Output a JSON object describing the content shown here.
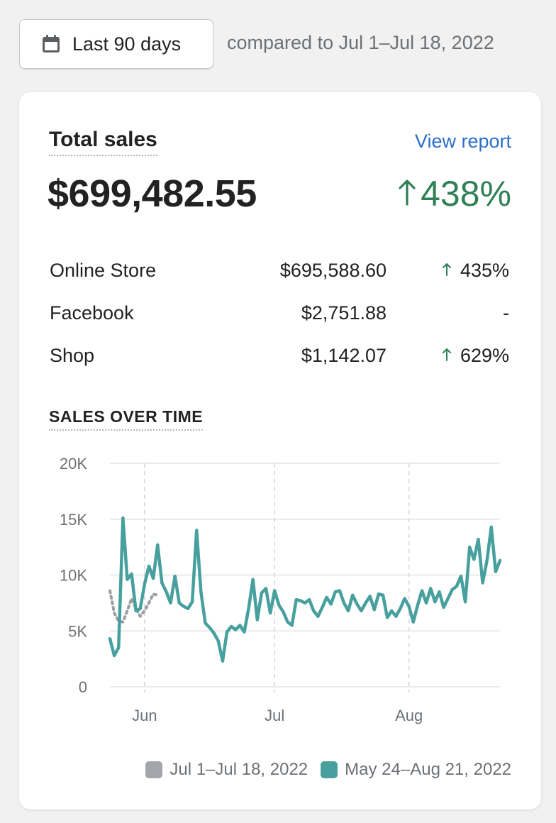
{
  "date_picker": {
    "label": "Last 90 days",
    "icon": "calendar-icon"
  },
  "comparison_text": "compared to Jul 1–Jul 18, 2022",
  "card": {
    "title": "Total sales",
    "view_report": "View report",
    "total_value": "$699,482.55",
    "total_change": "438%",
    "positive_color": "#2f8055",
    "link_color": "#2c6ecb"
  },
  "channels": [
    {
      "name": "Online Store",
      "amount": "$695,588.60",
      "change": "435%",
      "trend": "up"
    },
    {
      "name": "Facebook",
      "amount": "$2,751.88",
      "change": "-",
      "trend": "none"
    },
    {
      "name": "Shop",
      "amount": "$1,142.07",
      "change": "629%",
      "trend": "up"
    }
  ],
  "chart_title": "SALES OVER TIME",
  "chart_data": {
    "type": "line",
    "ylim": [
      0,
      20000
    ],
    "y_ticks": [
      0,
      5000,
      10000,
      15000,
      20000
    ],
    "y_tick_labels": [
      "0",
      "5K",
      "10K",
      "15K",
      "20K"
    ],
    "x_ticks": [
      {
        "label": "Jun",
        "day": 8
      },
      {
        "label": "Jul",
        "day": 38
      },
      {
        "label": "Aug",
        "day": 69
      }
    ],
    "grid": true,
    "legend_position": "bottom-right",
    "series": [
      {
        "name": "Jul 1–Jul 18, 2022",
        "color": "#8c9196",
        "style": "dotted",
        "values": [
          8600,
          6600,
          5900,
          5800,
          6800,
          7900,
          7000,
          6300,
          6800,
          7500,
          8300,
          8200
        ]
      },
      {
        "name": "May 24–Aug 21, 2022",
        "color": "#47a09e",
        "style": "solid",
        "values": [
          4300,
          2800,
          3500,
          15100,
          9600,
          10100,
          6800,
          7000,
          9200,
          10800,
          9700,
          12700,
          9300,
          8500,
          7500,
          9900,
          7500,
          7200,
          7000,
          7600,
          14000,
          8500,
          5700,
          5300,
          4800,
          4100,
          2300,
          4900,
          5400,
          5100,
          5500,
          4900,
          7000,
          9600,
          6000,
          8400,
          8800,
          6600,
          8600,
          7300,
          6700,
          5800,
          5500,
          7800,
          7700,
          7500,
          7800,
          6800,
          6300,
          7100,
          8000,
          7400,
          8500,
          8600,
          7500,
          6800,
          8200,
          7400,
          6800,
          7500,
          8100,
          6900,
          8300,
          8200,
          6200,
          6800,
          6300,
          7000,
          7900,
          7200,
          5800,
          7300,
          8600,
          7500,
          8800,
          7600,
          8500,
          7100,
          7900,
          8700,
          9000,
          9900,
          7600,
          12500,
          11400,
          13200,
          9300,
          11300,
          14300,
          10300,
          11300
        ]
      }
    ]
  }
}
